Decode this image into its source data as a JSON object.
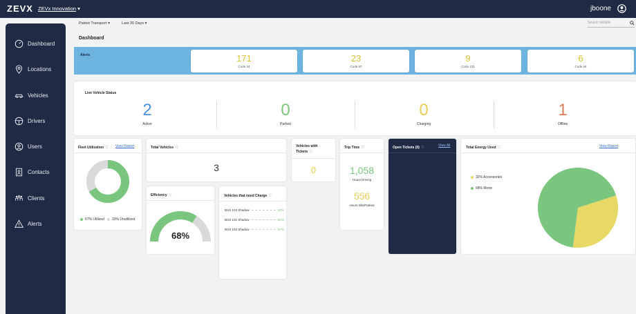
{
  "header": {
    "logo": "ZEVX",
    "org_name": "ZEVx Innovation",
    "org_caret": "▾",
    "username": "jboone",
    "user_icon": "user-circle-icon"
  },
  "sidebar": {
    "items": [
      {
        "label": "Dashboard",
        "icon": "speedometer-icon"
      },
      {
        "label": "Locations",
        "icon": "location-pin-icon"
      },
      {
        "label": "Vehicles",
        "icon": "car-icon"
      },
      {
        "label": "Drivers",
        "icon": "steering-wheel-icon"
      },
      {
        "label": "Users",
        "icon": "user-icon"
      },
      {
        "label": "Contacts",
        "icon": "contacts-icon"
      },
      {
        "label": "Clients",
        "icon": "clients-icon"
      },
      {
        "label": "Alerts",
        "icon": "warning-icon"
      }
    ]
  },
  "filters": {
    "company": "Patriot Transport",
    "range": "Last 30 Days",
    "caret": "▾",
    "search_placeholder": "Search Vehicle"
  },
  "page_title": "Dashboard",
  "alerts": {
    "label": "Alerts",
    "cards": [
      {
        "value": "171",
        "code": "Code 34"
      },
      {
        "value": "23",
        "code": "Code 97"
      },
      {
        "value": "9",
        "code": "Code 131"
      },
      {
        "value": "6",
        "code": "Code 84"
      }
    ],
    "value_color": "#e0c33a"
  },
  "live_status": {
    "title": "Live Vehicle Status",
    "items": [
      {
        "value": "2",
        "label": "Active",
        "color": "#4a90e2"
      },
      {
        "value": "0",
        "label": "Parked",
        "color": "#7bc67e"
      },
      {
        "value": "0",
        "label": "Charging",
        "color": "#e8cf5a"
      },
      {
        "value": "1",
        "label": "Offline",
        "color": "#e07a5f"
      }
    ]
  },
  "fleet_utilization": {
    "title": "Fleet Utilization",
    "link": "View Report",
    "utilized_pct": 67,
    "legend": [
      {
        "label": "67% Utilized",
        "color": "#7bc67e"
      },
      {
        "label": "33% Unutilized",
        "color": "#d9d9d9"
      }
    ]
  },
  "total_vehicles": {
    "title": "Total Vehicles",
    "value": "3"
  },
  "vehicles_tickets": {
    "title_line1": "Vehicles with",
    "title_line2": "Tickets",
    "value": "0"
  },
  "trip_time": {
    "title": "Trip Time",
    "driving_value": "1,058",
    "driving_label": "Hours Driving",
    "idle_value": "556",
    "idle_label": "Hours Idle/Parked"
  },
  "open_tickets": {
    "title": "Open Tickets (0)",
    "link": "View All"
  },
  "energy": {
    "title": "Total Energy Used",
    "link": "View Report",
    "slices": [
      {
        "label": "32% Accessories",
        "value": 32,
        "color": "#e8d865"
      },
      {
        "label": "68% Motor",
        "value": 68,
        "color": "#7bc67e"
      }
    ]
  },
  "efficiency": {
    "title": "Efficiency",
    "value": "68%",
    "pct": 68
  },
  "charge": {
    "title": "Vehicles that need Charge",
    "rows": [
      {
        "name": "BUS 103 Shadow",
        "pct": "83%"
      },
      {
        "name": "BUS 101 Shadow",
        "pct": "82%"
      },
      {
        "name": "BUS 102 Shadow",
        "pct": "97%"
      }
    ]
  },
  "star_glyph": "☆"
}
